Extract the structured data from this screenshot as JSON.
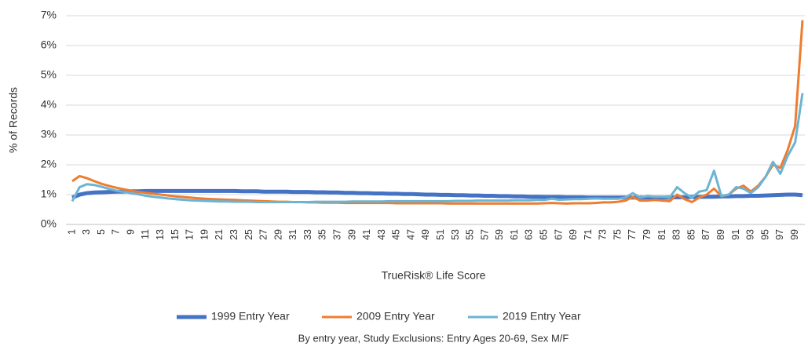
{
  "chart_data": {
    "type": "line",
    "x_label": "TrueRisk® Life Score",
    "y_label": "% of Records",
    "subtitle": "By entry year, Study Exclusions: Entry Ages 20-69, Sex M/F",
    "categories": [
      "1",
      null,
      "3",
      null,
      "5",
      null,
      "7",
      null,
      "9",
      null,
      "11",
      null,
      "13",
      null,
      "15",
      null,
      "17",
      null,
      "19",
      null,
      "21",
      null,
      "23",
      null,
      "25",
      null,
      "27",
      null,
      "29",
      null,
      "31",
      null,
      "33",
      null,
      "35",
      null,
      "37",
      null,
      "39",
      null,
      "41",
      null,
      "43",
      null,
      "45",
      null,
      "47",
      null,
      "49",
      null,
      "51",
      null,
      "53",
      null,
      "55",
      null,
      "57",
      null,
      "59",
      null,
      "61",
      null,
      "63",
      null,
      "65",
      null,
      "67",
      null,
      "69",
      null,
      "71",
      null,
      "73",
      null,
      "75",
      null,
      "77",
      null,
      "79",
      null,
      "81",
      null,
      "83",
      null,
      "85",
      null,
      "87",
      null,
      "89",
      null,
      "91",
      null,
      "93",
      null,
      "95",
      null,
      "97",
      null,
      "99",
      null
    ],
    "series": [
      {
        "name": "1999 Entry Year",
        "color": "#4472c4",
        "width": 5,
        "values": [
          0.9,
          1.0,
          1.05,
          1.07,
          1.08,
          1.09,
          1.1,
          1.1,
          1.11,
          1.11,
          1.12,
          1.12,
          1.12,
          1.12,
          1.12,
          1.12,
          1.12,
          1.12,
          1.12,
          1.12,
          1.12,
          1.12,
          1.12,
          1.11,
          1.11,
          1.11,
          1.1,
          1.1,
          1.1,
          1.1,
          1.09,
          1.09,
          1.09,
          1.08,
          1.08,
          1.07,
          1.07,
          1.06,
          1.06,
          1.05,
          1.05,
          1.04,
          1.04,
          1.03,
          1.03,
          1.02,
          1.02,
          1.01,
          1.0,
          1.0,
          0.99,
          0.99,
          0.98,
          0.98,
          0.97,
          0.97,
          0.96,
          0.96,
          0.95,
          0.95,
          0.94,
          0.94,
          0.93,
          0.93,
          0.92,
          0.92,
          0.92,
          0.91,
          0.91,
          0.91,
          0.9,
          0.9,
          0.9,
          0.9,
          0.9,
          0.9,
          0.9,
          0.9,
          0.9,
          0.9,
          0.9,
          0.9,
          0.91,
          0.91,
          0.92,
          0.92,
          0.93,
          0.93,
          0.94,
          0.94,
          0.95,
          0.95,
          0.96,
          0.96,
          0.97,
          0.98,
          0.99,
          1.0,
          1.0,
          0.98
        ]
      },
      {
        "name": "2009 Entry Year",
        "color": "#ed7d31",
        "width": 3,
        "values": [
          1.45,
          1.62,
          1.55,
          1.45,
          1.36,
          1.29,
          1.23,
          1.18,
          1.13,
          1.09,
          1.06,
          1.03,
          1.0,
          0.97,
          0.94,
          0.92,
          0.9,
          0.88,
          0.86,
          0.85,
          0.84,
          0.83,
          0.82,
          0.81,
          0.8,
          0.79,
          0.78,
          0.77,
          0.76,
          0.76,
          0.75,
          0.75,
          0.74,
          0.74,
          0.73,
          0.73,
          0.73,
          0.72,
          0.72,
          0.72,
          0.72,
          0.72,
          0.72,
          0.72,
          0.71,
          0.71,
          0.71,
          0.71,
          0.71,
          0.71,
          0.71,
          0.7,
          0.7,
          0.7,
          0.7,
          0.7,
          0.7,
          0.7,
          0.7,
          0.7,
          0.7,
          0.7,
          0.7,
          0.7,
          0.71,
          0.72,
          0.71,
          0.7,
          0.71,
          0.71,
          0.71,
          0.72,
          0.74,
          0.74,
          0.76,
          0.8,
          0.92,
          0.8,
          0.8,
          0.82,
          0.8,
          0.78,
          1.0,
          0.85,
          0.75,
          0.9,
          1.0,
          1.2,
          0.95,
          1.0,
          1.2,
          1.3,
          1.1,
          1.3,
          1.6,
          2.0,
          1.9,
          2.5,
          3.3,
          6.85
        ]
      },
      {
        "name": "2019 Entry Year",
        "color": "#6cb4d4",
        "width": 3,
        "values": [
          0.78,
          1.25,
          1.35,
          1.32,
          1.26,
          1.19,
          1.13,
          1.09,
          1.05,
          1.01,
          0.96,
          0.93,
          0.9,
          0.87,
          0.85,
          0.83,
          0.81,
          0.8,
          0.79,
          0.78,
          0.77,
          0.77,
          0.76,
          0.76,
          0.76,
          0.75,
          0.75,
          0.75,
          0.75,
          0.75,
          0.75,
          0.75,
          0.75,
          0.76,
          0.76,
          0.76,
          0.76,
          0.76,
          0.77,
          0.77,
          0.77,
          0.77,
          0.77,
          0.78,
          0.78,
          0.78,
          0.78,
          0.78,
          0.78,
          0.78,
          0.78,
          0.78,
          0.79,
          0.79,
          0.79,
          0.8,
          0.8,
          0.8,
          0.8,
          0.8,
          0.81,
          0.81,
          0.81,
          0.82,
          0.82,
          0.86,
          0.83,
          0.84,
          0.85,
          0.85,
          0.86,
          0.87,
          0.86,
          0.86,
          0.86,
          0.9,
          1.05,
          0.9,
          0.95,
          0.93,
          0.93,
          0.9,
          1.25,
          1.05,
          0.9,
          1.1,
          1.15,
          1.8,
          0.95,
          1.0,
          1.25,
          1.2,
          1.05,
          1.25,
          1.6,
          2.1,
          1.7,
          2.3,
          2.75,
          4.4
        ]
      }
    ],
    "ylim": [
      0,
      7
    ],
    "yticks": [
      {
        "value": 0,
        "label": "0%"
      },
      {
        "value": 1,
        "label": "1%"
      },
      {
        "value": 2,
        "label": "2%"
      },
      {
        "value": 3,
        "label": "3%"
      },
      {
        "value": 4,
        "label": "4%"
      },
      {
        "value": 5,
        "label": "5%"
      },
      {
        "value": 6,
        "label": "6%"
      },
      {
        "value": 7,
        "label": "7%"
      }
    ],
    "grid": true
  }
}
